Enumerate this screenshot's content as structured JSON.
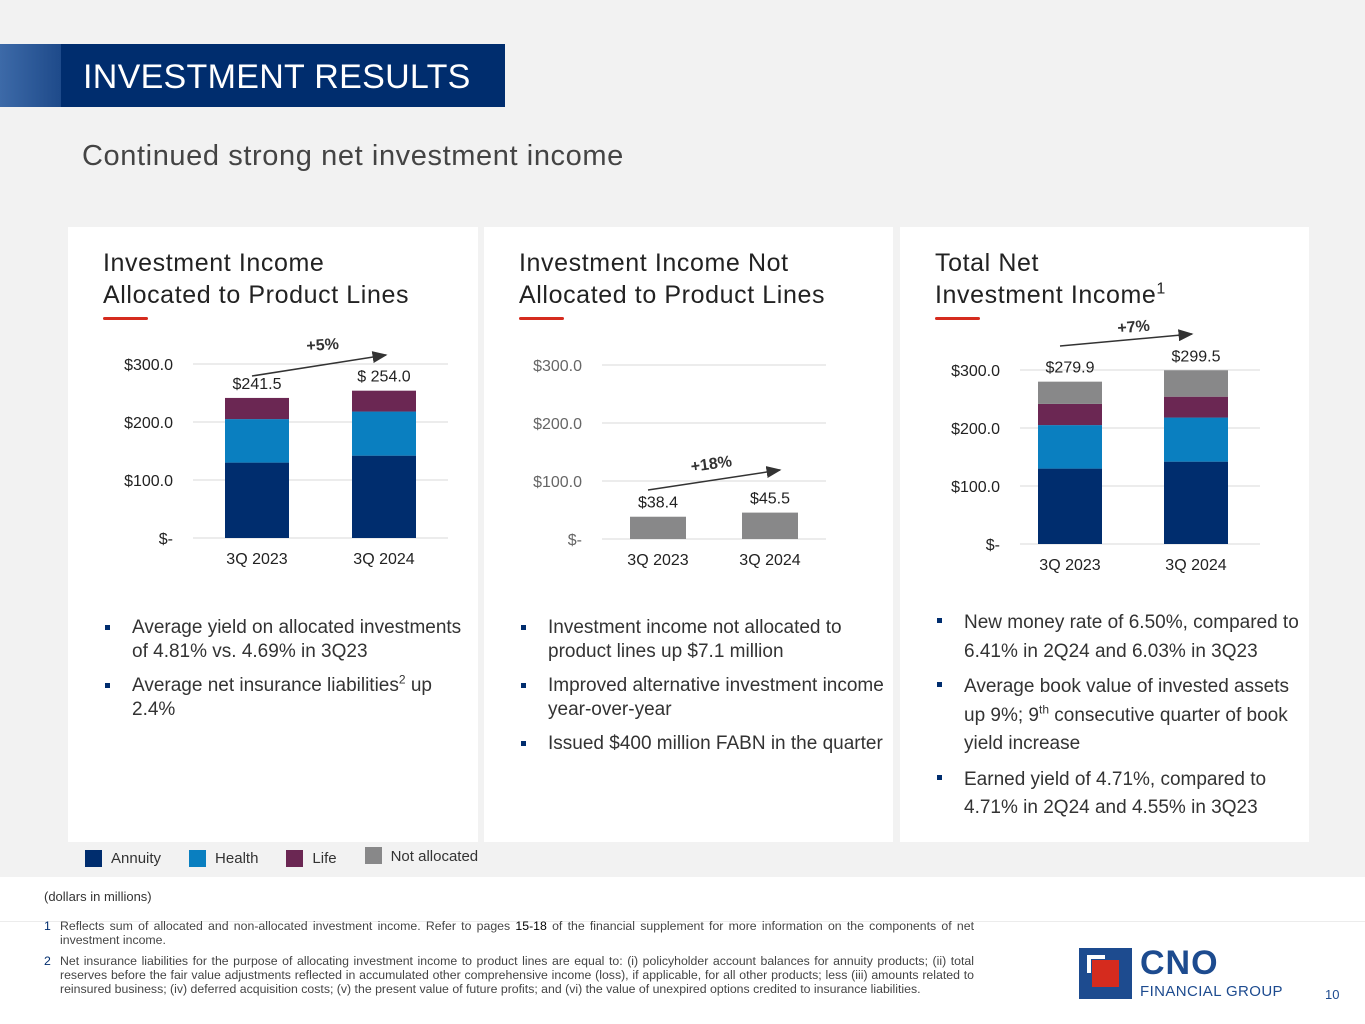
{
  "header": {
    "title": "INVESTMENT RESULTS",
    "subtitle": "Continued strong net investment income"
  },
  "colors": {
    "annuity": "#002d6e",
    "health": "#0a7fc0",
    "life": "#6b2753",
    "not_allocated": "#888889",
    "accent_red": "#d52b1e"
  },
  "panels": [
    {
      "title_line1": "Investment Income",
      "title_line2": "Allocated to Product Lines",
      "bullets": [
        "Average yield on allocated investments of 4.81% vs. 4.69% in 3Q23",
        {
          "pre": "Average net insurance liabilities",
          "sup": "2",
          "post": " up 2.4%"
        }
      ]
    },
    {
      "title_line1": "Investment Income Not",
      "title_line2": "Allocated to Product Lines",
      "bullets": [
        "Investment income not allocated to product lines up $7.1 million",
        "Improved alternative investment income year-over-year",
        "Issued $400 million FABN in the quarter"
      ]
    },
    {
      "title_line1": "Total Net",
      "title_line2": "Investment Income",
      "title_sup": "1",
      "bullets": [
        "New money rate of 6.50%, compared to 6.41% in 2Q24 and 6.03% in 3Q23",
        {
          "pre": "Average book value of invested assets up 9%; 9",
          "sup": "th",
          "post": " consecutive quarter of book yield increase"
        },
        "Earned yield of 4.71%, compared to 4.71% in 2Q24 and 4.55% in 3Q23"
      ]
    }
  ],
  "chart_data": [
    {
      "type": "bar",
      "title": "Investment Income Allocated to Product Lines",
      "categories": [
        "3Q 2023",
        "3Q 2024"
      ],
      "series": [
        {
          "name": "Annuity",
          "values": [
            130,
            142
          ]
        },
        {
          "name": "Health",
          "values": [
            75,
            76
          ]
        },
        {
          "name": "Life",
          "values": [
            36.5,
            36
          ]
        }
      ],
      "totals": [
        "$241.5",
        "$ 254.0"
      ],
      "growth": "+5%",
      "yticks": [
        "$-",
        "$100.0",
        "$200.0",
        "$300.0"
      ],
      "ylim": [
        0,
        300
      ]
    },
    {
      "type": "bar",
      "title": "Investment Income Not Allocated to Product Lines",
      "categories": [
        "3Q 2023",
        "3Q 2024"
      ],
      "series": [
        {
          "name": "Not allocated",
          "values": [
            38.4,
            45.5
          ]
        }
      ],
      "totals": [
        "$38.4",
        "$45.5"
      ],
      "growth": "+18%",
      "yticks": [
        "$-",
        "$100.0",
        "$200.0",
        "$300.0"
      ],
      "ylim": [
        0,
        300
      ]
    },
    {
      "type": "bar",
      "title": "Total Net Investment Income",
      "categories": [
        "3Q 2023",
        "3Q 2024"
      ],
      "series": [
        {
          "name": "Annuity",
          "values": [
            130,
            142
          ]
        },
        {
          "name": "Health",
          "values": [
            75,
            76
          ]
        },
        {
          "name": "Life",
          "values": [
            36.5,
            36
          ]
        },
        {
          "name": "Not allocated",
          "values": [
            38.4,
            45.5
          ]
        }
      ],
      "totals": [
        "$279.9",
        "$299.5"
      ],
      "growth": "+7%",
      "yticks": [
        "$-",
        "$100.0",
        "$200.0",
        "$300.0"
      ],
      "ylim": [
        0,
        300
      ]
    }
  ],
  "legend": [
    {
      "label": "Annuity",
      "color": "#002d6e"
    },
    {
      "label": "Health",
      "color": "#0a7fc0"
    },
    {
      "label": "Life",
      "color": "#6b2753"
    },
    {
      "label": "Not allocated",
      "color": "#888889"
    }
  ],
  "footer": {
    "units": "(dollars in millions)",
    "fn1_num": "1",
    "fn1_pre": "Reflects sum of allocated and non-allocated investment income. Refer to pages ",
    "fn1_pages": "15-18",
    "fn1_post": " of the financial supplement for more information on the components of net investment income.",
    "fn2_num": "2",
    "fn2": "Net insurance liabilities for the purpose of allocating investment income to product lines are equal to: (i) policyholder account balances for annuity products; (ii) total reserves before the fair value adjustments reflected in accumulated other comprehensive income (loss), if applicable, for all other products; less (iii) amounts related to reinsured business; (iv) deferred acquisition costs; (v) the present value of future profits; and (vi) the value of unexpired options credited to insurance liabilities.",
    "logo_cno": "CNO",
    "logo_fg": "FINANCIAL GROUP",
    "page_number": "10"
  }
}
